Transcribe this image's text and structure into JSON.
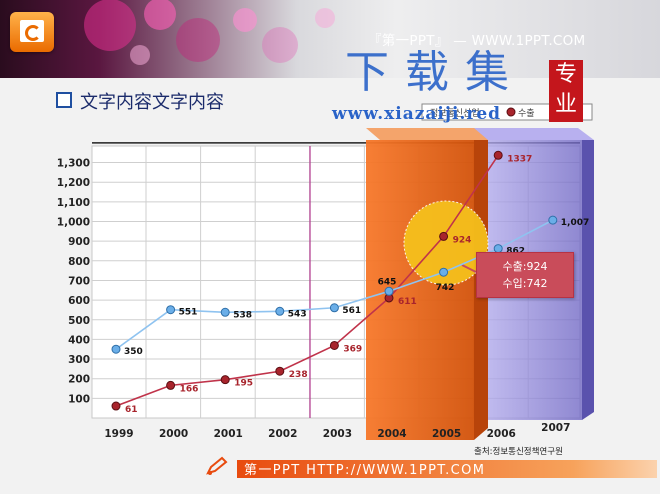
{
  "header": {
    "site_title": "『第一PPT』 — WWW.1PPT.COM",
    "watermark": "下载集",
    "watermark_url": "www.xiazaiji.red",
    "seal": "专业"
  },
  "slide": {
    "heading": "文字内容文字内容",
    "source": "출처:정보통신정책연구원"
  },
  "footer": {
    "text": "第一PPT HTTP://WWW.1PPT.COM"
  },
  "colors": {
    "export": "#c0334a",
    "import": "#7ab5ea",
    "highlight": "#ef6a0a",
    "band": "#8f86d6"
  },
  "chart_data": {
    "type": "line",
    "categories": [
      "1999",
      "2000",
      "2001",
      "2002",
      "2003",
      "2004",
      "2005",
      "2006",
      "2007"
    ],
    "yticks": [
      100,
      200,
      300,
      400,
      500,
      600,
      700,
      800,
      900,
      "1,000",
      "1,100",
      "1,200",
      "1,300"
    ],
    "ylim": [
      0,
      1400
    ],
    "legend": [
      "정보통신산업",
      "수출",
      "수입"
    ],
    "series": [
      {
        "name": "수출",
        "values": [
          61,
          166,
          195,
          238,
          369,
          611,
          924,
          1337,
          null
        ],
        "labels": [
          "61",
          "166",
          "195",
          "238",
          "369",
          "611",
          "924",
          "1337",
          ""
        ]
      },
      {
        "name": "수입",
        "values": [
          350,
          551,
          538,
          543,
          561,
          645,
          742,
          862,
          1007
        ],
        "labels": [
          "350",
          "551",
          "538",
          "543",
          "561",
          "645",
          "742",
          "862",
          "1,007"
        ]
      }
    ],
    "callout": {
      "export": "수출:924",
      "import": "수입:742"
    }
  }
}
